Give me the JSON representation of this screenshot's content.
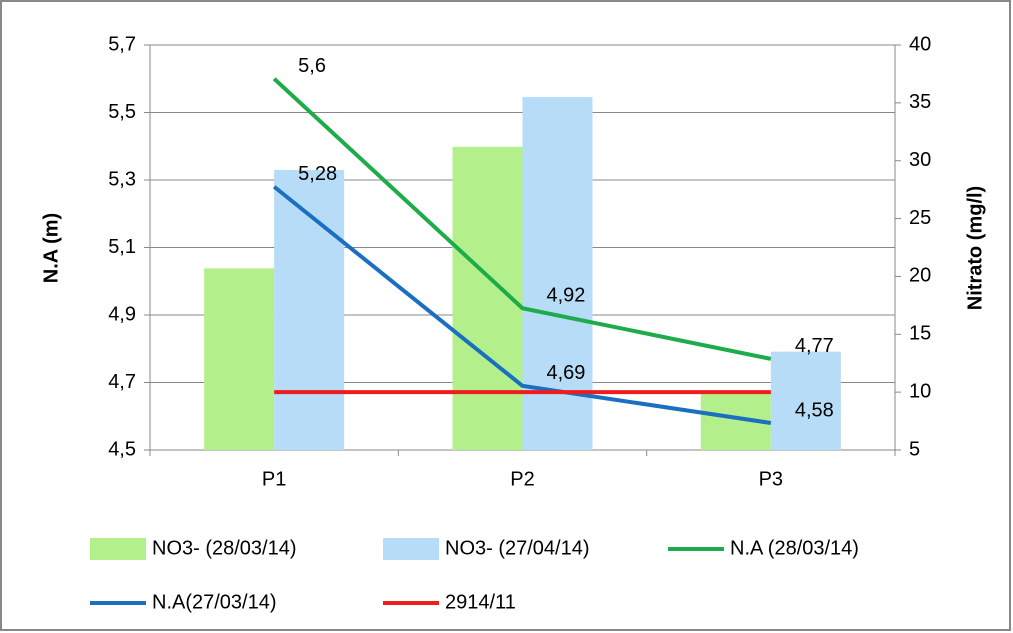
{
  "chart_data": {
    "type": "bar-line",
    "y_label": "N.A (m)",
    "y2_label": "Nitrato (mg/l)",
    "categories": [
      "P1",
      "P2",
      "P3"
    ],
    "ylim": [
      4.5,
      5.7
    ],
    "yticks": [
      {
        "value": 4.5,
        "label": "4,5"
      },
      {
        "value": 4.7,
        "label": "4,7"
      },
      {
        "value": 4.9,
        "label": "4,9"
      },
      {
        "value": 5.1,
        "label": "5,1"
      },
      {
        "value": 5.3,
        "label": "5,3"
      },
      {
        "value": 5.5,
        "label": "5,5"
      },
      {
        "value": 5.7,
        "label": "5,7"
      }
    ],
    "y2lim": [
      5,
      40
    ],
    "y2ticks": [
      5,
      10,
      15,
      20,
      25,
      30,
      35,
      40
    ],
    "grid": true,
    "series": [
      {
        "name": "NO3- (28/03/14)",
        "kind": "bar",
        "axis": "y2",
        "color": "#b3f08c",
        "values": [
          20.7,
          31.2,
          10
        ]
      },
      {
        "name": "NO3- (27/04/14)",
        "kind": "bar",
        "axis": "y2",
        "color": "#b7dcf7",
        "values": [
          29.2,
          35.5,
          13.5
        ]
      },
      {
        "name": "N.A (28/03/14)",
        "kind": "line",
        "axis": "y",
        "color": "#1eab4a",
        "values": [
          5.6,
          4.92,
          4.77
        ],
        "value_labels": [
          "5,6",
          "4,92",
          "4,77"
        ]
      },
      {
        "name": "N.A(27/03/14)",
        "kind": "line",
        "axis": "y",
        "color": "#1a6fc0",
        "values": [
          5.28,
          4.69,
          4.58
        ],
        "value_labels": [
          "5,28",
          "4,69",
          "4,58"
        ]
      },
      {
        "name": "2914/11",
        "kind": "line",
        "axis": "y2",
        "color": "#ee1c1c",
        "values": [
          10,
          10,
          10
        ]
      }
    ]
  }
}
